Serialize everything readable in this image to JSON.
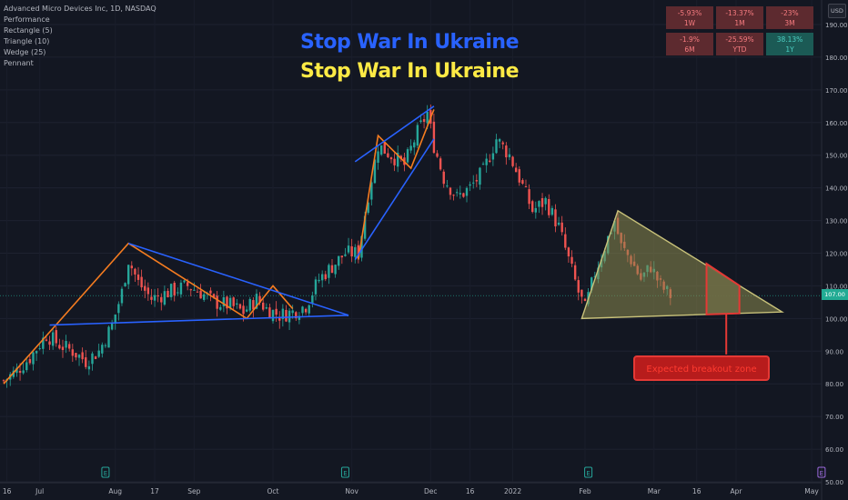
{
  "legend": {
    "title": "Advanced Micro Devices Inc, 1D, NASDAQ",
    "items": [
      "Performance",
      "Rectangle (5)",
      "Triangle (10)",
      "Wedge (25)",
      "Pennant"
    ]
  },
  "banner": {
    "line1": "Stop War In Ukraine",
    "line2": "Stop War In Ukraine"
  },
  "performance": [
    {
      "value": "-5.93%",
      "period": "1W",
      "color": "#5d2a2f"
    },
    {
      "value": "-13.37%",
      "period": "1M",
      "color": "#5d2a2f"
    },
    {
      "value": "-23%",
      "period": "3M",
      "color": "#5d2a2f"
    },
    {
      "value": "-1.9%",
      "period": "6M",
      "color": "#5d2a2f"
    },
    {
      "value": "-25.59%",
      "period": "YTD",
      "color": "#5d2a2f"
    },
    {
      "value": "38.13%",
      "period": "1Y",
      "color": "#1b5a55"
    }
  ],
  "currency": "USD",
  "last_price_label": "107.00",
  "callout": {
    "text": "Expected breakout zone"
  },
  "colors": {
    "up": "#26a69a",
    "down": "#ef5350",
    "orange": "#f57c20",
    "blue": "#2962ff",
    "triangle_fill": "#8d8b4e",
    "triangle_edge": "#c9c27a",
    "zone": "#e53935"
  },
  "chart_data": {
    "type": "candlestick",
    "title": "Advanced Micro Devices Inc, 1D, NASDAQ",
    "y_ticks": [
      50,
      60,
      70,
      80,
      90,
      100,
      110,
      120,
      130,
      140,
      150,
      160,
      170,
      180,
      190
    ],
    "ylim": [
      49,
      196
    ],
    "x_tick_labels": [
      "16",
      "Jul",
      "Aug",
      "17",
      "Sep",
      "Oct",
      "Nov",
      "Dec",
      "16",
      "2022",
      "Feb",
      "Mar",
      "16",
      "Apr",
      "May"
    ],
    "x_tick_days": [
      1,
      11,
      34,
      46,
      58,
      82,
      106,
      130,
      142,
      155,
      177,
      198,
      211,
      223,
      246
    ],
    "earnings_marker_days": [
      31,
      104,
      178,
      249
    ],
    "last_price": 107,
    "close_path": [
      {
        "day": 0,
        "close": 81
      },
      {
        "day": 4,
        "close": 84
      },
      {
        "day": 8,
        "close": 88
      },
      {
        "day": 13,
        "close": 95
      },
      {
        "day": 17,
        "close": 92
      },
      {
        "day": 21,
        "close": 90
      },
      {
        "day": 25,
        "close": 87
      },
      {
        "day": 29,
        "close": 90
      },
      {
        "day": 33,
        "close": 98
      },
      {
        "day": 36,
        "close": 108
      },
      {
        "day": 38,
        "close": 118
      },
      {
        "day": 41,
        "close": 111
      },
      {
        "day": 45,
        "close": 106
      },
      {
        "day": 50,
        "close": 108
      },
      {
        "day": 56,
        "close": 110
      },
      {
        "day": 60,
        "close": 108
      },
      {
        "day": 64,
        "close": 105
      },
      {
        "day": 69,
        "close": 104
      },
      {
        "day": 73,
        "close": 102
      },
      {
        "day": 77,
        "close": 106
      },
      {
        "day": 80,
        "close": 103
      },
      {
        "day": 84,
        "close": 101
      },
      {
        "day": 88,
        "close": 102
      },
      {
        "day": 92,
        "close": 104
      },
      {
        "day": 96,
        "close": 112
      },
      {
        "day": 100,
        "close": 116
      },
      {
        "day": 104,
        "close": 120
      },
      {
        "day": 108,
        "close": 120
      },
      {
        "day": 111,
        "close": 138
      },
      {
        "day": 114,
        "close": 153
      },
      {
        "day": 118,
        "close": 150
      },
      {
        "day": 122,
        "close": 147
      },
      {
        "day": 126,
        "close": 157
      },
      {
        "day": 129,
        "close": 163
      },
      {
        "day": 131,
        "close": 153
      },
      {
        "day": 134,
        "close": 143
      },
      {
        "day": 138,
        "close": 137
      },
      {
        "day": 142,
        "close": 140
      },
      {
        "day": 146,
        "close": 145
      },
      {
        "day": 150,
        "close": 155
      },
      {
        "day": 154,
        "close": 150
      },
      {
        "day": 157,
        "close": 143
      },
      {
        "day": 161,
        "close": 133
      },
      {
        "day": 165,
        "close": 136
      },
      {
        "day": 169,
        "close": 128
      },
      {
        "day": 172,
        "close": 118
      },
      {
        "day": 175,
        "close": 108
      },
      {
        "day": 177,
        "close": 103
      },
      {
        "day": 180,
        "close": 114
      },
      {
        "day": 183,
        "close": 122
      },
      {
        "day": 186,
        "close": 130
      },
      {
        "day": 188,
        "close": 122
      },
      {
        "day": 191,
        "close": 118
      },
      {
        "day": 194,
        "close": 112
      },
      {
        "day": 197,
        "close": 116
      },
      {
        "day": 200,
        "close": 110
      },
      {
        "day": 203,
        "close": 107
      }
    ],
    "annotations": [
      {
        "type": "line",
        "color": "orange",
        "points": [
          [
            0,
            80
          ],
          [
            38,
            123
          ],
          [
            74,
            100
          ],
          [
            82,
            110
          ],
          [
            88,
            103
          ]
        ]
      },
      {
        "type": "line",
        "color": "blue",
        "points": [
          [
            14,
            98
          ],
          [
            105,
            101
          ]
        ]
      },
      {
        "type": "line",
        "color": "blue",
        "points": [
          [
            38,
            123
          ],
          [
            105,
            101
          ]
        ]
      },
      {
        "type": "line",
        "color": "orange",
        "points": [
          [
            108,
            118
          ],
          [
            114,
            156
          ],
          [
            124,
            146
          ],
          [
            131,
            164
          ]
        ]
      },
      {
        "type": "line",
        "color": "blue",
        "points": [
          [
            107,
            148
          ],
          [
            131,
            165
          ]
        ]
      },
      {
        "type": "line",
        "color": "blue",
        "points": [
          [
            107,
            118
          ],
          [
            131,
            155
          ]
        ]
      },
      {
        "type": "triangle",
        "points": [
          [
            176,
            100
          ],
          [
            187,
            133
          ],
          [
            237,
            102
          ]
        ]
      },
      {
        "type": "rectangle",
        "days": [
          214,
          224
        ],
        "prices": [
          101,
          117
        ]
      },
      {
        "type": "callout",
        "text": "Expected breakout zone",
        "day": 220,
        "price": 89
      }
    ]
  }
}
